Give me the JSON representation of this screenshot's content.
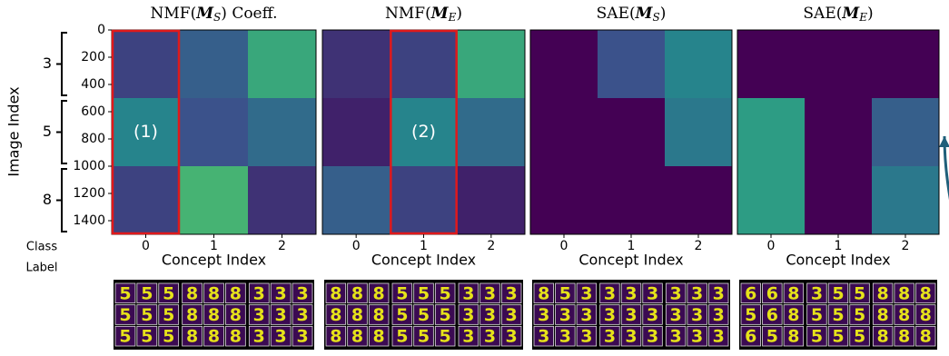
{
  "y_axis_label": "Image Index",
  "class_axis_label": [
    "Class",
    "Label"
  ],
  "groups": [
    {
      "label": "3",
      "range": [
        0,
        500
      ]
    },
    {
      "label": "5",
      "range": [
        500,
        1000
      ]
    },
    {
      "label": "8",
      "range": [
        1000,
        1500
      ]
    }
  ],
  "chart_data": [
    {
      "type": "heatmap",
      "title": [
        "NMF(",
        "𝑴",
        "S",
        ") Coeff."
      ],
      "categories": [
        "0",
        "1",
        "2"
      ],
      "xlabel": "Concept Index",
      "ylim": [
        0,
        1500
      ],
      "yticks": [
        0,
        200,
        400,
        600,
        800,
        1000,
        1200,
        1400
      ],
      "row_bounds": [
        0,
        500,
        1000,
        1500
      ],
      "values": [
        [
          0.2,
          0.3,
          0.6
        ],
        [
          0.45,
          0.25,
          0.35
        ],
        [
          0.2,
          0.65,
          0.15
        ]
      ],
      "highlight": 0,
      "annotation": "(1)",
      "examples": [
        [
          "5",
          "5",
          "5",
          "8",
          "8",
          "8",
          "3",
          "3",
          "3"
        ],
        [
          "5",
          "5",
          "5",
          "8",
          "8",
          "8",
          "3",
          "3",
          "3"
        ],
        [
          "5",
          "5",
          "5",
          "8",
          "8",
          "8",
          "3",
          "3",
          "3"
        ]
      ]
    },
    {
      "type": "heatmap",
      "title": [
        "NMF(",
        "𝑴",
        "E",
        ")"
      ],
      "categories": [
        "0",
        "1",
        "2"
      ],
      "xlabel": "Concept Index",
      "ylim": [
        0,
        1500
      ],
      "row_bounds": [
        0,
        500,
        1000,
        1500
      ],
      "values": [
        [
          0.15,
          0.2,
          0.6
        ],
        [
          0.1,
          0.45,
          0.35
        ],
        [
          0.3,
          0.2,
          0.1
        ]
      ],
      "highlight": 1,
      "annotation": "(2)",
      "examples": [
        [
          "8",
          "8",
          "8",
          "5",
          "5",
          "5",
          "3",
          "3",
          "3"
        ],
        [
          "8",
          "8",
          "8",
          "5",
          "5",
          "5",
          "3",
          "3",
          "3"
        ],
        [
          "8",
          "8",
          "8",
          "5",
          "5",
          "5",
          "3",
          "3",
          "3"
        ]
      ]
    },
    {
      "type": "heatmap",
      "title": [
        "SAE(",
        "𝑴",
        "S",
        ")"
      ],
      "categories": [
        "0",
        "1",
        "2"
      ],
      "xlabel": "Concept Index",
      "ylim": [
        0,
        1500
      ],
      "row_bounds": [
        0,
        500,
        1000,
        1500
      ],
      "values": [
        [
          0.0,
          0.25,
          0.45
        ],
        [
          0.0,
          0.0,
          0.4
        ],
        [
          0.0,
          0.0,
          0.0
        ]
      ],
      "examples": [
        [
          "8",
          "5",
          "3",
          "3",
          "3",
          "3",
          "3",
          "3",
          "3"
        ],
        [
          "3",
          "3",
          "3",
          "3",
          "3",
          "3",
          "3",
          "3",
          "3"
        ],
        [
          "3",
          "3",
          "3",
          "3",
          "3",
          "3",
          "3",
          "3",
          "3"
        ]
      ]
    },
    {
      "type": "heatmap",
      "title": [
        "SAE(",
        "𝑴",
        "E",
        ")"
      ],
      "categories": [
        "0",
        "1",
        "2"
      ],
      "xlabel": "Concept Index",
      "ylim": [
        0,
        1500
      ],
      "row_bounds": [
        0,
        500,
        1000,
        1500
      ],
      "values": [
        [
          0.0,
          0.0,
          0.0
        ],
        [
          0.55,
          0.0,
          0.3
        ],
        [
          0.55,
          0.0,
          0.4
        ]
      ],
      "examples": [
        [
          "6",
          "6",
          "8",
          "3",
          "5",
          "5",
          "8",
          "8",
          "8"
        ],
        [
          "5",
          "6",
          "8",
          "5",
          "5",
          "5",
          "8",
          "8",
          "8"
        ],
        [
          "6",
          "5",
          "8",
          "5",
          "5",
          "5",
          "8",
          "8",
          "8"
        ]
      ]
    }
  ]
}
